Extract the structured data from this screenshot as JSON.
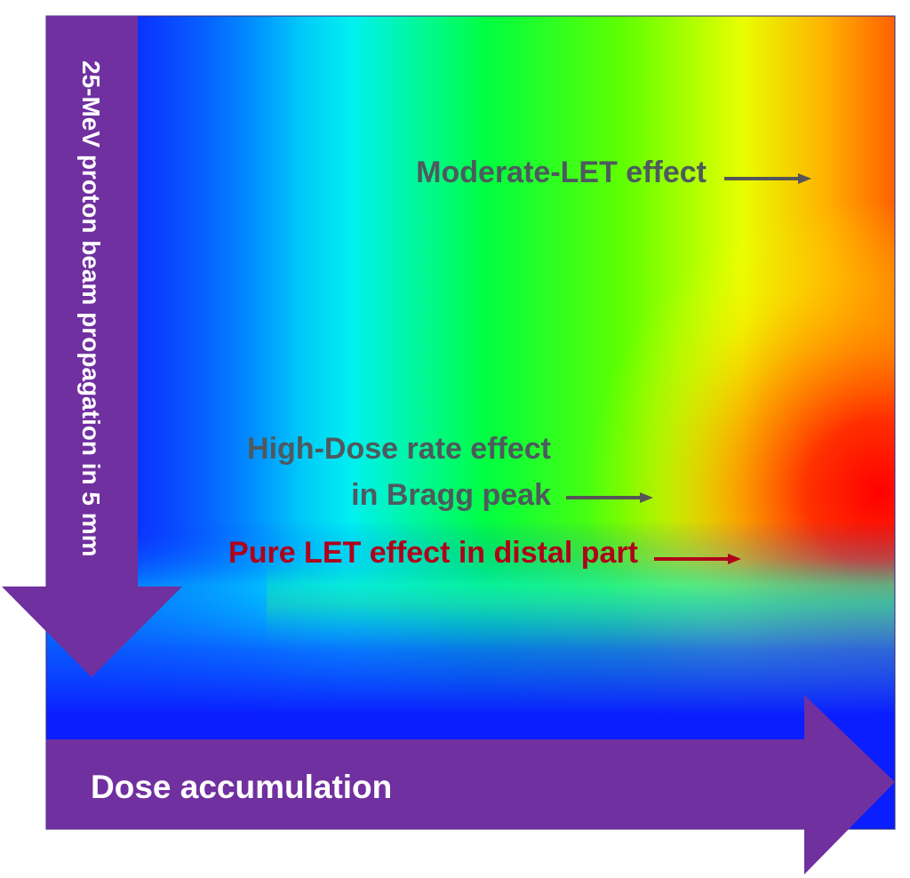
{
  "figure": {
    "kind": "dose-LET heat map diagram",
    "colors": {
      "arrow_fill": "#7030a0",
      "arrow_text": "#ffffff",
      "annotation_gray": "#4d5a5e",
      "annotation_red": "#b0001a",
      "arrow_gray": "#555555",
      "arrow_red": "#b0001a",
      "heat_low": "#0a1eff",
      "heat_mid": "#00ff30",
      "heat_high": "#ff0000"
    }
  },
  "axes": {
    "y_arrow_label": "25-MeV proton beam propagation in 5 mm",
    "x_arrow_label": "Dose accumulation"
  },
  "annotations": {
    "moderate_let": "Moderate-LET effect",
    "high_dose_rate_line1": "High-Dose rate effect",
    "high_dose_rate_line2": "in Bragg peak",
    "pure_let": "Pure LET effect in distal part"
  }
}
